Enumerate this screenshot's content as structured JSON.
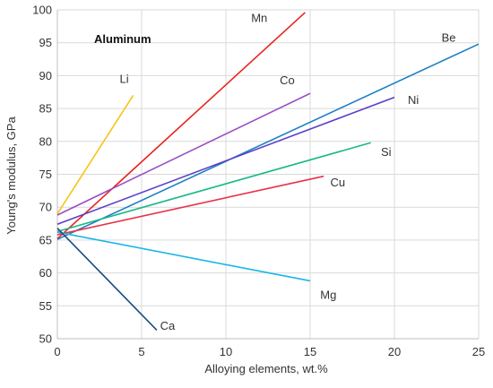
{
  "chart_data": {
    "type": "line",
    "title": "",
    "annotation": "Aluminum",
    "xlabel": "Alloying elements, wt.%",
    "ylabel": "Young's modulus, GPa",
    "xlim": [
      0,
      25
    ],
    "ylim": [
      50,
      100
    ],
    "xticks": [
      0,
      5,
      10,
      15,
      20,
      25
    ],
    "yticks": [
      50,
      55,
      60,
      65,
      70,
      75,
      80,
      85,
      90,
      95,
      100
    ],
    "grid": true,
    "series": [
      {
        "name": "Li",
        "color": "#f5c518",
        "x": [
          0,
          4.5
        ],
        "y": [
          69,
          87
        ],
        "label_pos": [
          3.7,
          89.5
        ]
      },
      {
        "name": "Mn",
        "color": "#e8231f",
        "x": [
          0,
          14.7
        ],
        "y": [
          65.2,
          99.6
        ],
        "label_pos": [
          11.5,
          98.8
        ]
      },
      {
        "name": "Co",
        "color": "#9b4fc4",
        "x": [
          0,
          15
        ],
        "y": [
          68.8,
          87.3
        ],
        "label_pos": [
          13.2,
          89.3
        ]
      },
      {
        "name": "Be",
        "color": "#1f7fc4",
        "x": [
          0,
          25
        ],
        "y": [
          65.1,
          94.8
        ],
        "label_pos": [
          22.8,
          95.8
        ]
      },
      {
        "name": "Ni",
        "color": "#5b3ec8",
        "x": [
          0,
          20
        ],
        "y": [
          67.4,
          86.7
        ],
        "label_pos": [
          20.8,
          86.3
        ]
      },
      {
        "name": "Si",
        "color": "#1ab88a",
        "x": [
          0,
          18.6
        ],
        "y": [
          66.3,
          79.8
        ],
        "label_pos": [
          19.2,
          78.4
        ]
      },
      {
        "name": "Cu",
        "color": "#e8304a",
        "x": [
          0,
          15.8
        ],
        "y": [
          65.8,
          74.7
        ],
        "label_pos": [
          16.2,
          73.8
        ]
      },
      {
        "name": "Mg",
        "color": "#1ab5e8",
        "x": [
          0,
          15
        ],
        "y": [
          66.2,
          58.8
        ],
        "label_pos": [
          15.6,
          56.7
        ]
      },
      {
        "name": "Ca",
        "color": "#1a4d80",
        "x": [
          0,
          5.9
        ],
        "y": [
          66.8,
          51.3
        ],
        "label_pos": [
          6.1,
          52.0
        ]
      }
    ]
  }
}
